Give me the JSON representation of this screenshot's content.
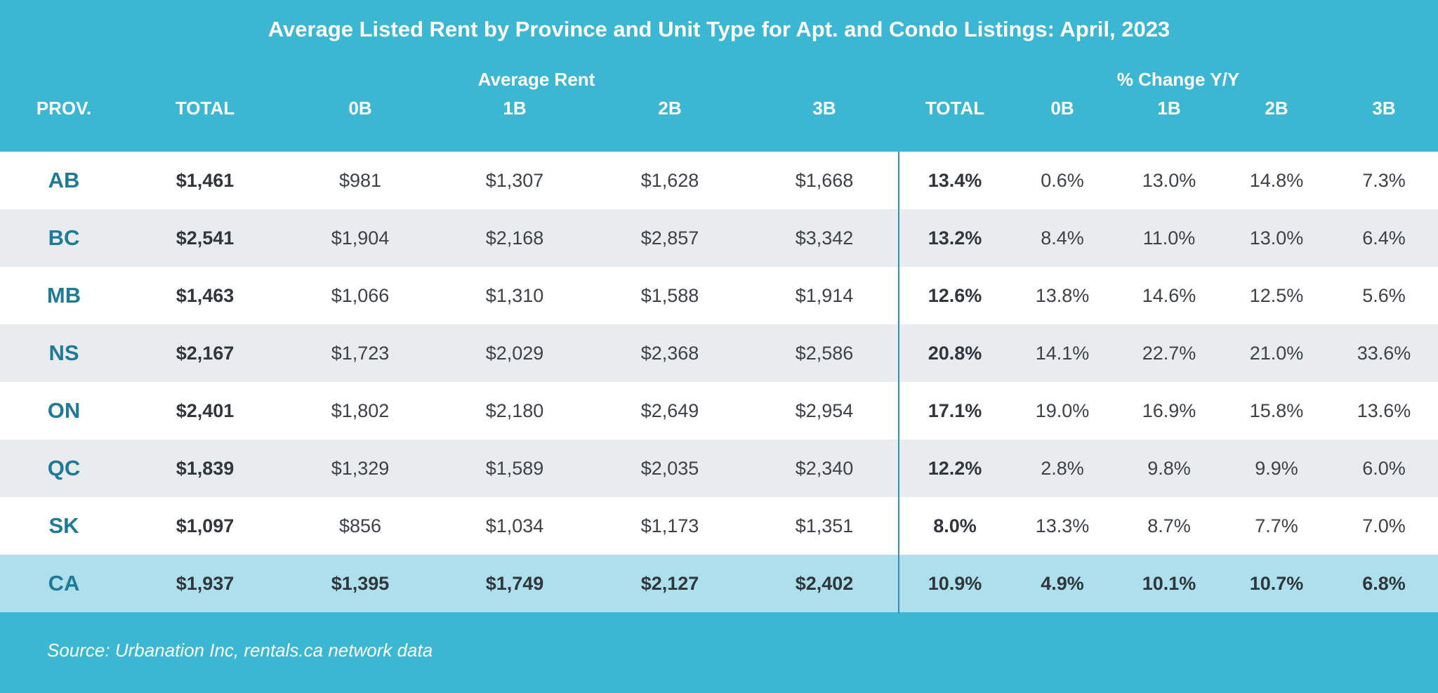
{
  "chart_data": {
    "type": "table",
    "title": "Average Listed Rent by Province and Unit Type for Apt. and Condo Listings: April, 2023",
    "group_headers": {
      "average_rent": "Average Rent",
      "pct_change": "% Change Y/Y"
    },
    "columns": [
      "PROV.",
      "TOTAL",
      "0B",
      "1B",
      "2B",
      "3B",
      "TOTAL",
      "0B",
      "1B",
      "2B",
      "3B"
    ],
    "rows": [
      [
        "AB",
        "$1,461",
        "$981",
        "$1,307",
        "$1,628",
        "$1,668",
        "13.4%",
        "0.6%",
        "13.0%",
        "14.8%",
        "7.3%"
      ],
      [
        "BC",
        "$2,541",
        "$1,904",
        "$2,168",
        "$2,857",
        "$3,342",
        "13.2%",
        "8.4%",
        "11.0%",
        "13.0%",
        "6.4%"
      ],
      [
        "MB",
        "$1,463",
        "$1,066",
        "$1,310",
        "$1,588",
        "$1,914",
        "12.6%",
        "13.8%",
        "14.6%",
        "12.5%",
        "5.6%"
      ],
      [
        "NS",
        "$2,167",
        "$1,723",
        "$2,029",
        "$2,368",
        "$2,586",
        "20.8%",
        "14.1%",
        "22.7%",
        "21.0%",
        "33.6%"
      ],
      [
        "ON",
        "$2,401",
        "$1,802",
        "$2,180",
        "$2,649",
        "$2,954",
        "17.1%",
        "19.0%",
        "16.9%",
        "15.8%",
        "13.6%"
      ],
      [
        "QC",
        "$1,839",
        "$1,329",
        "$1,589",
        "$2,035",
        "$2,340",
        "12.2%",
        "2.8%",
        "9.8%",
        "9.9%",
        "6.0%"
      ],
      [
        "SK",
        "$1,097",
        "$856",
        "$1,034",
        "$1,173",
        "$1,351",
        "8.0%",
        "13.3%",
        "8.7%",
        "7.7%",
        "7.0%"
      ],
      [
        "CA",
        "$1,937",
        "$1,395",
        "$1,749",
        "$2,127",
        "$2,402",
        "10.9%",
        "4.9%",
        "10.1%",
        "10.7%",
        "6.8%"
      ]
    ],
    "source": "Source: Urbanation Inc, rentals.ca network data"
  },
  "colors": {
    "header_bg": "#3bb7d4",
    "row_white": "#ffffff",
    "row_alt": "#e9ecee",
    "row_total": "#ade0ec",
    "province_text": "#1e7a96",
    "divider": "#2f93ad"
  }
}
